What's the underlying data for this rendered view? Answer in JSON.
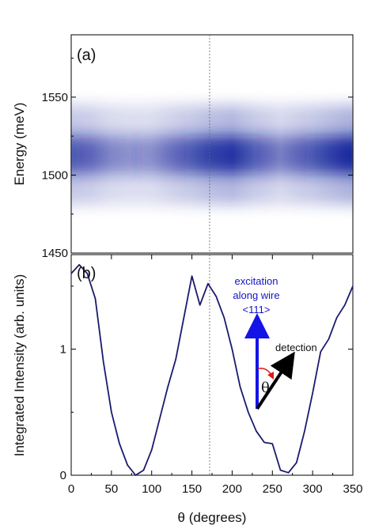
{
  "chart_data": [
    {
      "panel": "(a)",
      "type": "heatmap",
      "ylabel": "Energy (meV)",
      "xlim": [
        0,
        350
      ],
      "ylim": [
        1450,
        1590
      ],
      "yticks": [
        1450,
        1500,
        1550
      ],
      "band_center_meV": 1513,
      "band_width_meV": 10,
      "theta_deg": [
        0,
        25,
        50,
        80,
        100,
        120,
        150,
        170,
        200,
        230,
        260,
        300,
        350
      ],
      "relative_intensity": [
        0.55,
        0.42,
        0.2,
        0.1,
        0.15,
        0.32,
        0.55,
        0.72,
        0.85,
        0.5,
        0.25,
        0.55,
        1.0
      ],
      "colormap": [
        "#ffffff",
        "#10209a"
      ],
      "vline_x": 172
    },
    {
      "panel": "(b)",
      "type": "line",
      "xlabel": "θ (degrees)",
      "ylabel": "Integrated Intensity (arb. units)",
      "xlim": [
        0,
        350
      ],
      "ylim": [
        0,
        1.75
      ],
      "xticks": [
        0,
        50,
        100,
        150,
        200,
        250,
        300,
        350
      ],
      "yticks": [
        0,
        1
      ],
      "x": [
        0,
        10,
        20,
        30,
        40,
        50,
        60,
        70,
        80,
        90,
        100,
        110,
        120,
        130,
        140,
        150,
        160,
        170,
        180,
        190,
        200,
        210,
        220,
        230,
        240,
        250,
        260,
        270,
        280,
        290,
        300,
        310,
        320,
        330,
        340,
        350
      ],
      "y": [
        1.6,
        1.67,
        1.6,
        1.4,
        0.9,
        0.5,
        0.25,
        0.08,
        0.0,
        0.04,
        0.2,
        0.45,
        0.7,
        0.92,
        1.25,
        1.58,
        1.35,
        1.52,
        1.42,
        1.25,
        1.0,
        0.7,
        0.5,
        0.35,
        0.26,
        0.25,
        0.04,
        0.02,
        0.1,
        0.35,
        0.65,
        0.98,
        1.08,
        1.25,
        1.35,
        1.5
      ],
      "line_color": "#1a1a6e",
      "vline_x": 172,
      "annotations": {
        "excitation_line1": "excitation",
        "excitation_line2": "along wire",
        "excitation_line3": "<111>",
        "detection": "detection",
        "theta": "θ"
      }
    }
  ]
}
